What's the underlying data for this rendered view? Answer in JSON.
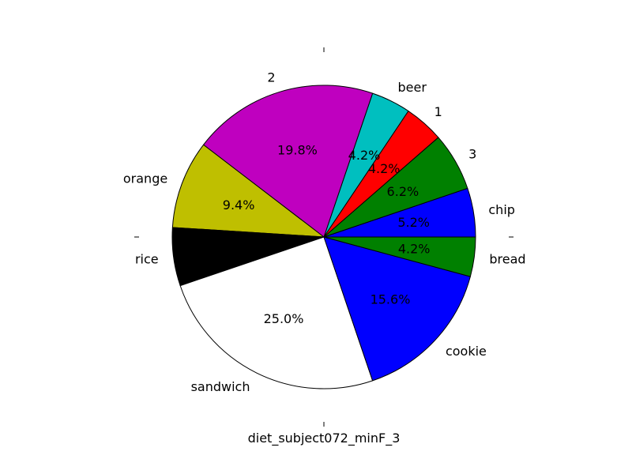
{
  "chart_data": {
    "type": "pie",
    "title": "",
    "xlabel": "diet_subject072_minF_3",
    "ylabel": "",
    "start_angle_deg": 0,
    "direction": "counterclockwise",
    "slices": [
      {
        "label": "chip",
        "value": 5.2,
        "pct_text": "5.2%",
        "color": "#0000ff"
      },
      {
        "label": "3",
        "value": 6.2,
        "pct_text": "6.2%",
        "color": "#008000"
      },
      {
        "label": "1",
        "value": 4.2,
        "pct_text": "4.2%",
        "color": "#ff0000"
      },
      {
        "label": "beer",
        "value": 4.2,
        "pct_text": "4.2%",
        "color": "#00bfbf"
      },
      {
        "label": "2",
        "value": 19.8,
        "pct_text": "19.8%",
        "color": "#bf00bf"
      },
      {
        "label": "orange",
        "value": 9.4,
        "pct_text": "9.4%",
        "color": "#bfbf00"
      },
      {
        "label": "rice",
        "value": 6.2,
        "pct_text": "",
        "color": "#000000"
      },
      {
        "label": "sandwich",
        "value": 25.0,
        "pct_text": "25.0%",
        "color": "#ffffff"
      },
      {
        "label": "cookie",
        "value": 15.6,
        "pct_text": "15.6%",
        "color": "#0000ff"
      },
      {
        "label": "bread",
        "value": 4.2,
        "pct_text": "4.2%",
        "color": "#008000"
      }
    ]
  }
}
